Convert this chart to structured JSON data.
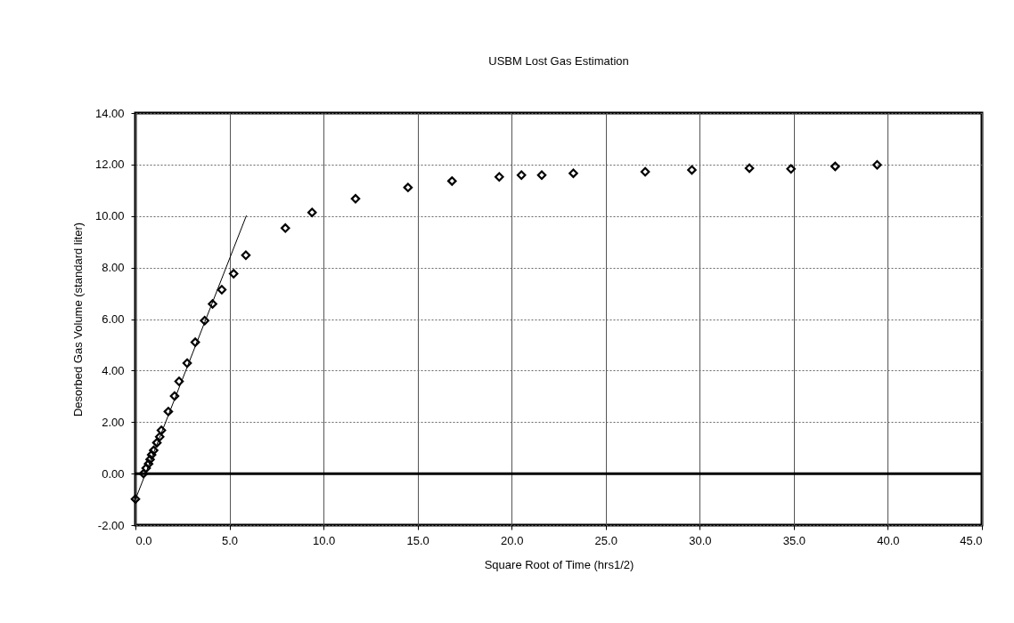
{
  "chart_data": {
    "type": "scatter",
    "title": "USBM Lost Gas Estimation",
    "xlabel": "Square Root of Time (hrs1/2)",
    "ylabel": "Desorbed Gas Volume (standard liter)",
    "series": [
      {
        "color": "#000000",
        "x": [
          0,
          0.43,
          0.57,
          0.7,
          0.78,
          0.86,
          0.97,
          1.14,
          1.29,
          1.38,
          1.75,
          2.08,
          2.32,
          2.75,
          3.18,
          3.68,
          4.1,
          4.59,
          5.22,
          5.87,
          7.97,
          9.39,
          11.7,
          14.49,
          16.83,
          19.34,
          20.52,
          21.6,
          23.28,
          27.1,
          29.58,
          32.64,
          34.85,
          37.2,
          39.43
        ],
        "values": [
          -0.99,
          0,
          0.21,
          0.38,
          0.55,
          0.73,
          0.9,
          1.2,
          1.43,
          1.68,
          2.41,
          3.01,
          3.58,
          4.29,
          5.1,
          5.94,
          6.59,
          7.14,
          7.76,
          8.48,
          9.53,
          10.14,
          10.67,
          11.11,
          11.36,
          11.52,
          11.59,
          11.59,
          11.66,
          11.72,
          11.79,
          11.86,
          11.83,
          11.93,
          11.99
        ]
      },
      {
        "type": "line",
        "marker": "none",
        "color": "#000000",
        "x": [
          0,
          5.9
        ],
        "values": [
          -1.0,
          10.02
        ]
      }
    ],
    "xlim": [
      0,
      45
    ],
    "xticks": [
      {
        "value": 0,
        "label": "0.0"
      },
      {
        "value": 5,
        "label": "5.0"
      },
      {
        "value": 10,
        "label": "10.0"
      },
      {
        "value": 15,
        "label": "15.0"
      },
      {
        "value": 20,
        "label": "20.0"
      },
      {
        "value": 25,
        "label": "25.0"
      },
      {
        "value": 30,
        "label": "30.0"
      },
      {
        "value": 35,
        "label": "35.0"
      },
      {
        "value": 40,
        "label": "40.0"
      },
      {
        "value": 45,
        "label": "45.0"
      }
    ],
    "ylim": [
      -2,
      14
    ],
    "yticks": [
      {
        "value": -2,
        "label": "-2.00"
      },
      {
        "value": 0,
        "label": "0.00"
      },
      {
        "value": 2,
        "label": "2.00"
      },
      {
        "value": 4,
        "label": "4.00"
      },
      {
        "value": 6,
        "label": "6.00"
      },
      {
        "value": 8,
        "label": "8.00"
      },
      {
        "value": 10,
        "label": "10.00"
      },
      {
        "value": 12,
        "label": "12.00"
      },
      {
        "value": 14,
        "label": "14.00"
      }
    ],
    "ref_lines": [
      {
        "axis": "y",
        "value": 0,
        "color": "#000000"
      }
    ],
    "grid": true,
    "marker": "diamond"
  }
}
